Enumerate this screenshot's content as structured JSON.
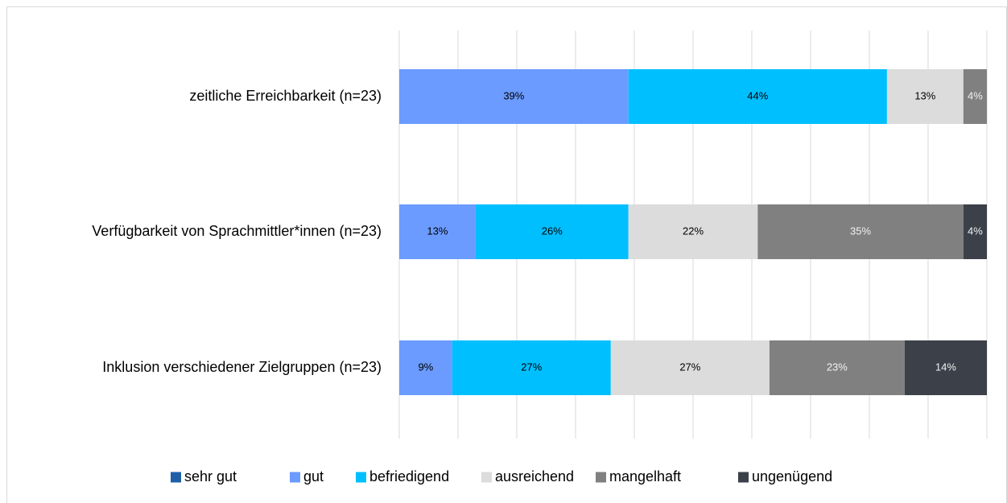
{
  "chart_data": {
    "type": "stacked-barh",
    "categories": [
      "zeitliche Erreichbarkeit (n=23)",
      "Verfügbarkeit von Sprachmittler*innen (n=23)",
      "Inklusion verschiedener Zielgruppen (n=23)"
    ],
    "series": [
      {
        "name": "sehr gut",
        "color": "#1f5fa8",
        "values": [
          0,
          0,
          0
        ]
      },
      {
        "name": "gut",
        "color": "#6b9bff",
        "values": [
          39,
          13,
          9
        ],
        "value_labels": [
          "39%",
          "13%",
          "9%"
        ]
      },
      {
        "name": "befriedigend",
        "color": "#00bfff",
        "values": [
          44,
          26,
          27
        ],
        "value_labels": [
          "44%",
          "26%",
          "27%"
        ]
      },
      {
        "name": "ausreichend",
        "color": "#dcdcdc",
        "values": [
          13,
          22,
          27
        ],
        "value_labels": [
          "13%",
          "22%",
          "27%"
        ]
      },
      {
        "name": "mangelhaft",
        "color": "#808080",
        "values": [
          4,
          35,
          23
        ],
        "value_labels": [
          "4%",
          "35%",
          "23%"
        ]
      },
      {
        "name": "ungenügend",
        "color": "#3b4049",
        "values": [
          0,
          4,
          14
        ],
        "value_labels": [
          null,
          "4%",
          "14%"
        ]
      }
    ],
    "xlim": [
      0,
      100
    ],
    "xticks": [
      0,
      10,
      20,
      30,
      40,
      50,
      60,
      70,
      80,
      90,
      100
    ],
    "grid": true,
    "legend": "bottom"
  }
}
